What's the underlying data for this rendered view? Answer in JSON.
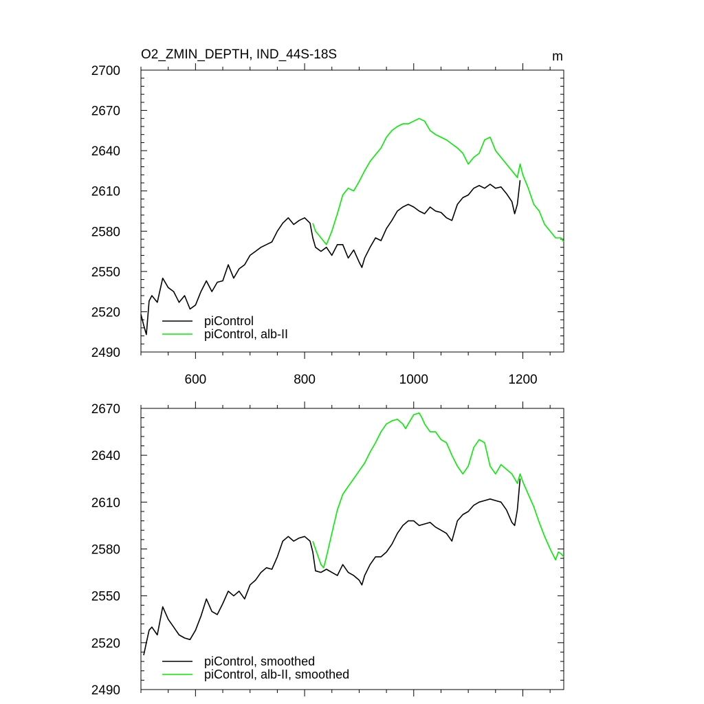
{
  "chart_data": [
    {
      "type": "line",
      "title": "O2_ZMIN_DEPTH, IND_44S-18S",
      "units": "m",
      "xlim": [
        500,
        1275
      ],
      "ylim": [
        2490,
        2700
      ],
      "xticks": [
        600,
        800,
        1000,
        1200
      ],
      "yticks": [
        2490,
        2520,
        2550,
        2580,
        2610,
        2640,
        2670,
        2700
      ],
      "legend": "bottom-left",
      "series": [
        {
          "name": "piControl",
          "color": "#000000",
          "x": [
            500,
            505,
            510,
            515,
            520,
            530,
            540,
            550,
            560,
            570,
            580,
            590,
            600,
            610,
            620,
            630,
            640,
            650,
            660,
            670,
            680,
            690,
            700,
            710,
            720,
            730,
            740,
            750,
            760,
            770,
            780,
            790,
            800,
            810,
            815,
            820,
            830,
            840,
            850,
            860,
            870,
            880,
            890,
            900,
            905,
            910,
            920,
            930,
            940,
            950,
            960,
            970,
            980,
            990,
            1000,
            1010,
            1020,
            1030,
            1040,
            1050,
            1060,
            1070,
            1080,
            1090,
            1100,
            1110,
            1120,
            1130,
            1140,
            1150,
            1160,
            1170,
            1180,
            1185,
            1190,
            1195
          ],
          "values": [
            2518,
            2510,
            2503,
            2528,
            2532,
            2527,
            2545,
            2538,
            2535,
            2527,
            2532,
            2522,
            2525,
            2535,
            2543,
            2535,
            2542,
            2543,
            2555,
            2545,
            2552,
            2555,
            2562,
            2565,
            2568,
            2570,
            2572,
            2580,
            2586,
            2590,
            2585,
            2588,
            2590,
            2586,
            2575,
            2568,
            2565,
            2568,
            2562,
            2570,
            2570,
            2560,
            2566,
            2557,
            2553,
            2560,
            2568,
            2575,
            2573,
            2582,
            2588,
            2595,
            2598,
            2600,
            2598,
            2595,
            2593,
            2598,
            2595,
            2594,
            2590,
            2588,
            2600,
            2605,
            2607,
            2612,
            2614,
            2612,
            2615,
            2612,
            2613,
            2608,
            2602,
            2593,
            2600,
            2618
          ]
        },
        {
          "name": "piControl, alb-II",
          "color": "#00ee00",
          "x": [
            815,
            820,
            830,
            840,
            850,
            860,
            870,
            880,
            890,
            900,
            910,
            920,
            930,
            940,
            950,
            960,
            970,
            980,
            990,
            1000,
            1010,
            1020,
            1030,
            1040,
            1050,
            1060,
            1070,
            1080,
            1090,
            1100,
            1110,
            1120,
            1130,
            1140,
            1150,
            1160,
            1170,
            1180,
            1190,
            1195,
            1200,
            1210,
            1220,
            1230,
            1240,
            1250,
            1260,
            1270,
            1275
          ],
          "values": [
            2586,
            2580,
            2575,
            2570,
            2580,
            2593,
            2607,
            2612,
            2610,
            2617,
            2625,
            2632,
            2637,
            2642,
            2650,
            2655,
            2658,
            2660,
            2660,
            2662,
            2664,
            2662,
            2655,
            2652,
            2650,
            2648,
            2645,
            2642,
            2638,
            2630,
            2635,
            2638,
            2648,
            2650,
            2640,
            2635,
            2630,
            2625,
            2620,
            2630,
            2622,
            2612,
            2600,
            2595,
            2585,
            2580,
            2575,
            2575,
            2572
          ]
        }
      ]
    },
    {
      "type": "line",
      "xlim": [
        500,
        1275
      ],
      "ylim": [
        2490,
        2670
      ],
      "xticks": [
        600,
        800,
        1000,
        1200
      ],
      "yticks": [
        2490,
        2520,
        2550,
        2580,
        2610,
        2640,
        2670
      ],
      "legend": "bottom-left",
      "series": [
        {
          "name": "piControl, smoothed",
          "color": "#000000",
          "x": [
            505,
            510,
            515,
            520,
            530,
            540,
            550,
            560,
            570,
            580,
            590,
            600,
            610,
            620,
            630,
            640,
            650,
            660,
            670,
            680,
            690,
            700,
            710,
            720,
            730,
            740,
            750,
            760,
            770,
            780,
            790,
            800,
            810,
            815,
            820,
            830,
            840,
            850,
            860,
            870,
            880,
            890,
            900,
            905,
            910,
            920,
            930,
            940,
            950,
            960,
            970,
            980,
            990,
            1000,
            1010,
            1020,
            1030,
            1040,
            1050,
            1060,
            1070,
            1080,
            1090,
            1100,
            1110,
            1120,
            1130,
            1140,
            1150,
            1160,
            1170,
            1180,
            1185,
            1190,
            1195
          ],
          "values": [
            2512,
            2520,
            2528,
            2530,
            2525,
            2543,
            2535,
            2530,
            2525,
            2523,
            2522,
            2528,
            2537,
            2548,
            2540,
            2538,
            2545,
            2553,
            2550,
            2553,
            2548,
            2557,
            2560,
            2565,
            2568,
            2567,
            2575,
            2585,
            2588,
            2585,
            2587,
            2588,
            2585,
            2578,
            2566,
            2565,
            2567,
            2565,
            2563,
            2570,
            2565,
            2563,
            2560,
            2557,
            2563,
            2570,
            2575,
            2575,
            2578,
            2583,
            2590,
            2595,
            2598,
            2598,
            2595,
            2596,
            2597,
            2594,
            2592,
            2590,
            2585,
            2598,
            2602,
            2604,
            2608,
            2610,
            2611,
            2612,
            2611,
            2610,
            2605,
            2597,
            2595,
            2605,
            2625
          ]
        },
        {
          "name": "piControl, alb-II, smoothed",
          "color": "#00ee00",
          "x": [
            815,
            820,
            830,
            835,
            840,
            850,
            860,
            870,
            880,
            890,
            900,
            910,
            920,
            930,
            940,
            950,
            960,
            970,
            980,
            985,
            990,
            1000,
            1010,
            1015,
            1020,
            1030,
            1040,
            1050,
            1060,
            1070,
            1080,
            1090,
            1100,
            1110,
            1120,
            1130,
            1140,
            1150,
            1160,
            1170,
            1180,
            1190,
            1195,
            1200,
            1210,
            1220,
            1230,
            1240,
            1250,
            1260,
            1265,
            1270,
            1275
          ],
          "values": [
            2585,
            2580,
            2570,
            2568,
            2575,
            2590,
            2605,
            2615,
            2620,
            2625,
            2630,
            2635,
            2642,
            2648,
            2655,
            2660,
            2662,
            2663,
            2660,
            2657,
            2660,
            2666,
            2667,
            2664,
            2660,
            2655,
            2655,
            2650,
            2648,
            2640,
            2633,
            2628,
            2633,
            2645,
            2650,
            2648,
            2633,
            2628,
            2634,
            2631,
            2628,
            2622,
            2628,
            2623,
            2615,
            2607,
            2597,
            2588,
            2580,
            2573,
            2578,
            2577,
            2575
          ]
        }
      ]
    }
  ]
}
